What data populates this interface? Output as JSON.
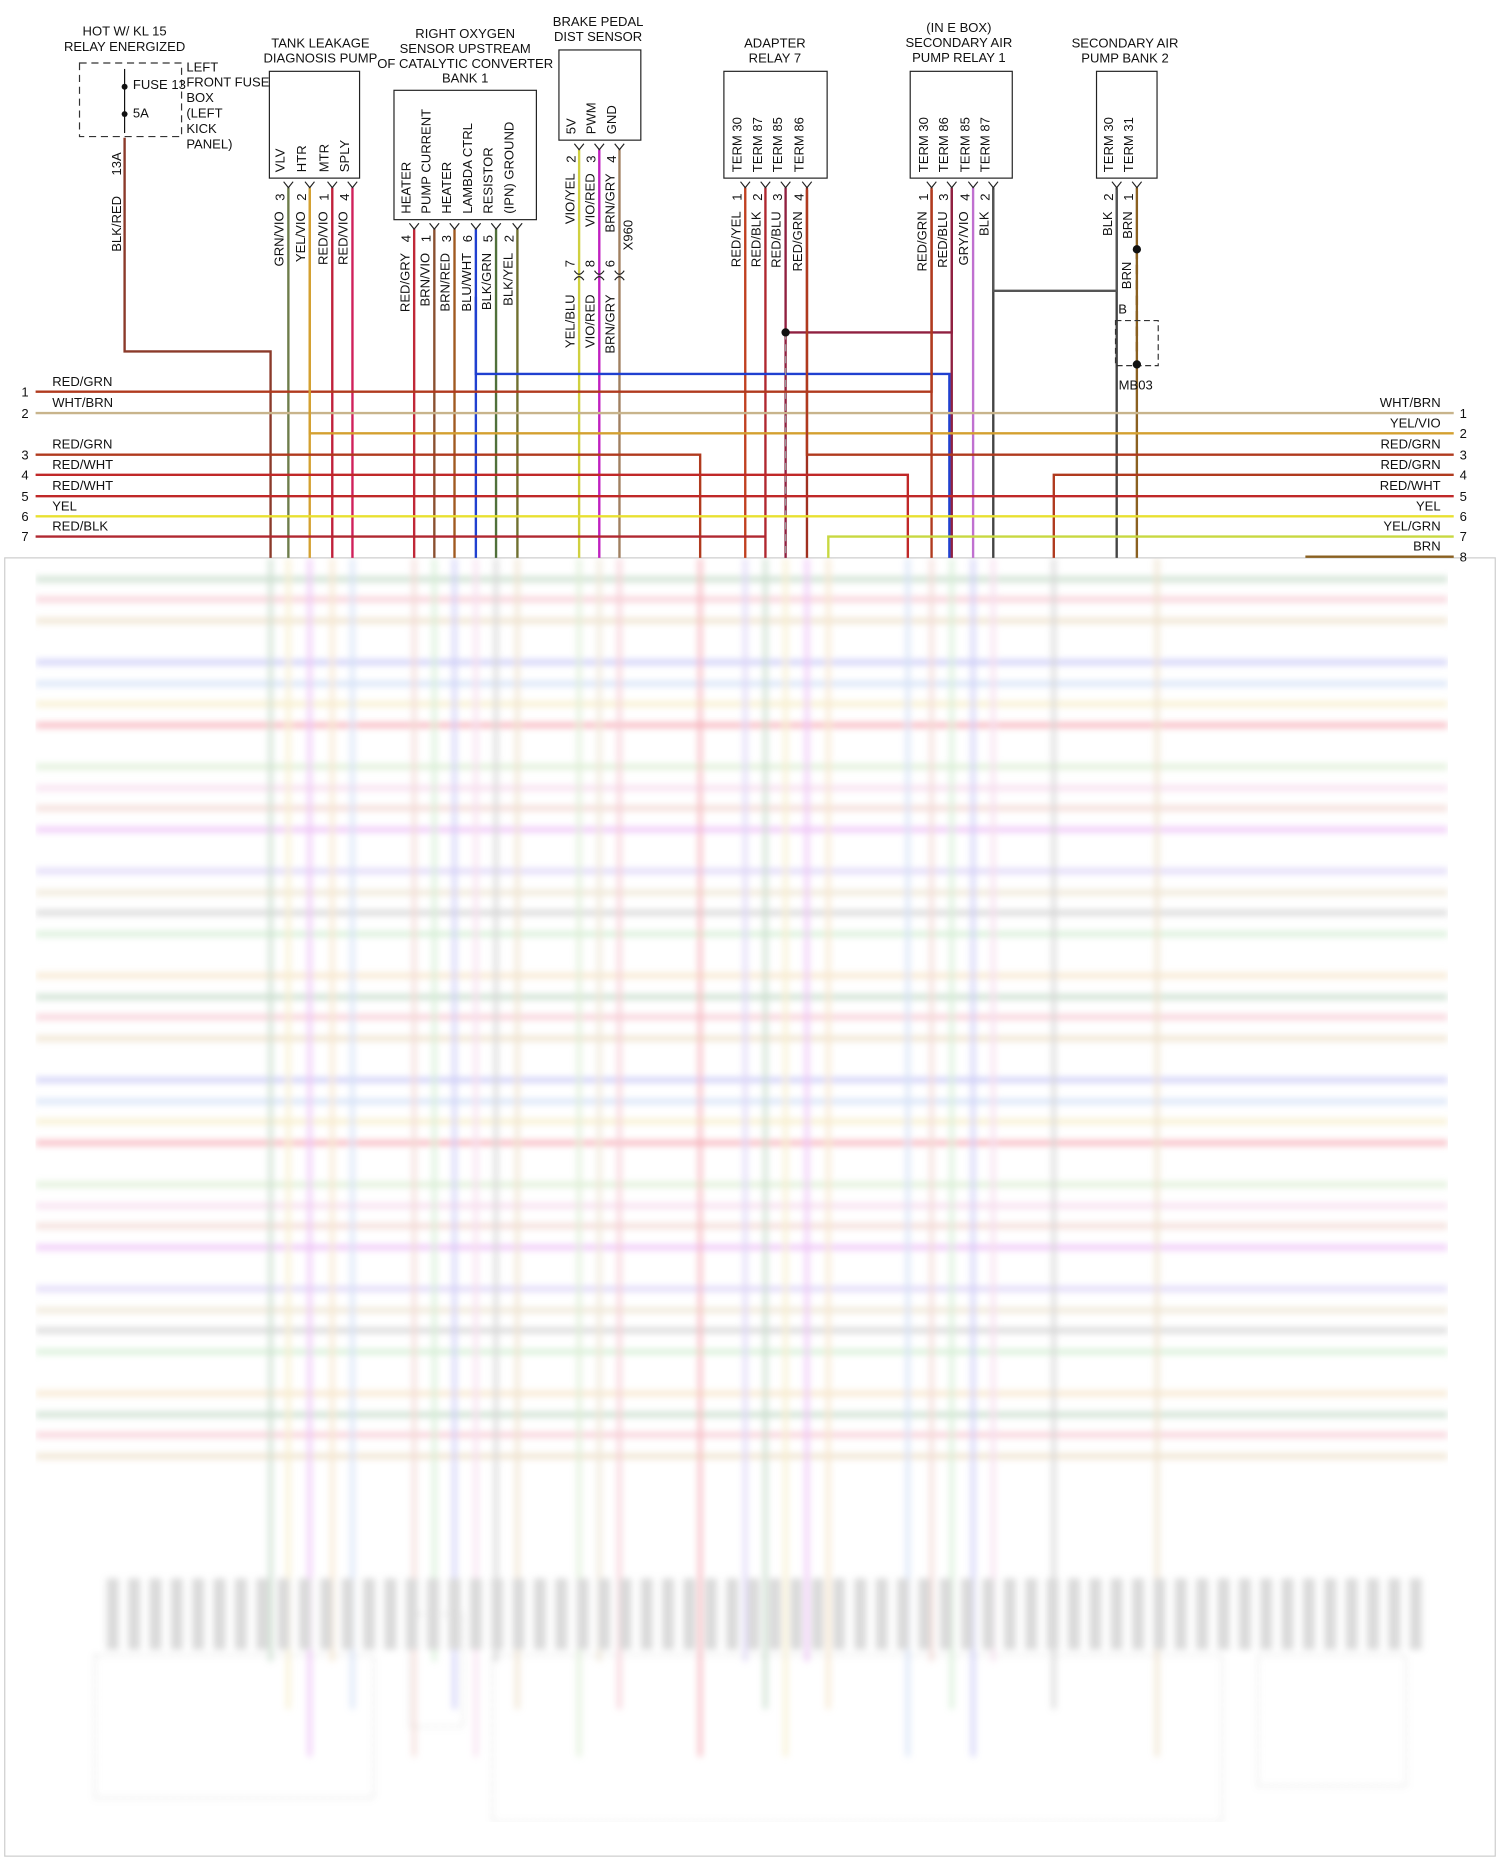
{
  "supply": {
    "title": [
      "HOT W/ KL 15",
      "RELAY ENERGIZED"
    ],
    "fuse": "FUSE 13",
    "rating": "5A",
    "location": [
      "LEFT",
      "FRONT FUSE",
      "BOX",
      "(LEFT",
      "KICK",
      "PANEL)"
    ],
    "pin": "13A",
    "wire": "BLK/RED"
  },
  "components": [
    {
      "title": [
        "TANK LEAKAGE",
        "DIAGNOSIS PUMP"
      ],
      "pins": [
        {
          "name": "VLV",
          "number": "3",
          "wire": "GRN/VIO"
        },
        {
          "name": "HTR",
          "number": "2",
          "wire": "YEL/VIO"
        },
        {
          "name": "MTR",
          "number": "1",
          "wire": "RED/VIO"
        },
        {
          "name": "SPLY",
          "number": "4",
          "wire": "RED/VIO"
        }
      ]
    },
    {
      "title": [
        "RIGHT OXYGEN",
        "SENSOR UPSTREAM",
        "OF CATALYTIC CONVERTER",
        "BANK 1"
      ],
      "pins": [
        {
          "name": "HEATER",
          "number": "4",
          "wire": "RED/GRY"
        },
        {
          "name": "PUMP CURRENT",
          "number": "1",
          "wire": "BRN/VIO"
        },
        {
          "name": "HEATER",
          "number": "3",
          "wire": "BRN/RED"
        },
        {
          "name": "LAMBDA CTRL",
          "number": "6",
          "wire": "BLU/WHT"
        },
        {
          "name": "RESISTOR",
          "number": "5",
          "wire": "BLK/GRN"
        },
        {
          "name": "(IPN) GROUND",
          "number": "2",
          "wire": "BLK/YEL"
        }
      ]
    },
    {
      "title": [
        "BRAKE PEDAL",
        "DIST SENSOR"
      ],
      "connector": "X960",
      "pins": [
        {
          "name": "5V",
          "number": "2",
          "wire": "VIO/YEL",
          "connector_pin": "7",
          "connector_wire": "YEL/BLU"
        },
        {
          "name": "PWM",
          "number": "3",
          "wire": "VIO/RED",
          "connector_pin": "8",
          "connector_wire": "VIO/RED"
        },
        {
          "name": "GND",
          "number": "4",
          "wire": "BRN/GRY",
          "connector_pin": "6",
          "connector_wire": "BRN/GRY"
        }
      ]
    },
    {
      "title": [
        "ADAPTER",
        "RELAY 7"
      ],
      "pins": [
        {
          "name": "TERM 30",
          "number": "1",
          "wire": "RED/YEL"
        },
        {
          "name": "TERM 87",
          "number": "2",
          "wire": "RED/BLK"
        },
        {
          "name": "TERM 85",
          "number": "3",
          "wire": "RED/BLU"
        },
        {
          "name": "TERM 86",
          "number": "4",
          "wire": "RED/GRN"
        }
      ]
    },
    {
      "title": [
        "(IN E BOX)",
        "SECONDARY AIR",
        "PUMP RELAY 1"
      ],
      "pins": [
        {
          "name": "TERM 30",
          "number": "1",
          "wire": "RED/GRN"
        },
        {
          "name": "TERM 86",
          "number": "3",
          "wire": "RED/BLU"
        },
        {
          "name": "TERM 85",
          "number": "4",
          "wire": "GRY/VIO"
        },
        {
          "name": "TERM 87",
          "number": "2",
          "wire": "BLK"
        }
      ]
    },
    {
      "title": [
        "SECONDARY AIR",
        "PUMP BANK 2"
      ],
      "pins": [
        {
          "name": "TERM 30",
          "number": "2",
          "wire": "BLK"
        },
        {
          "name": "TERM 31",
          "number": "1",
          "wire": "BRN"
        }
      ],
      "ground_wire": "BRN",
      "ground_pin": "B",
      "ground": "MB03"
    }
  ],
  "left_wires": [
    {
      "number": "1",
      "wire": "RED/GRN"
    },
    {
      "number": "2",
      "wire": "WHT/BRN"
    },
    {
      "number": "3",
      "wire": "RED/GRN"
    },
    {
      "number": "4",
      "wire": "RED/WHT"
    },
    {
      "number": "5",
      "wire": "RED/WHT"
    },
    {
      "number": "6",
      "wire": "YEL"
    },
    {
      "number": "7",
      "wire": "RED/BLK"
    }
  ],
  "right_wires": [
    {
      "number": "1",
      "wire": "WHT/BRN"
    },
    {
      "number": "2",
      "wire": "YEL/VIO"
    },
    {
      "number": "3",
      "wire": "RED/GRN"
    },
    {
      "number": "4",
      "wire": "RED/GRN"
    },
    {
      "number": "5",
      "wire": "RED/WHT"
    },
    {
      "number": "6",
      "wire": "YEL"
    },
    {
      "number": "7",
      "wire": "YEL/GRN"
    },
    {
      "number": "8",
      "wire": "BRN"
    }
  ]
}
